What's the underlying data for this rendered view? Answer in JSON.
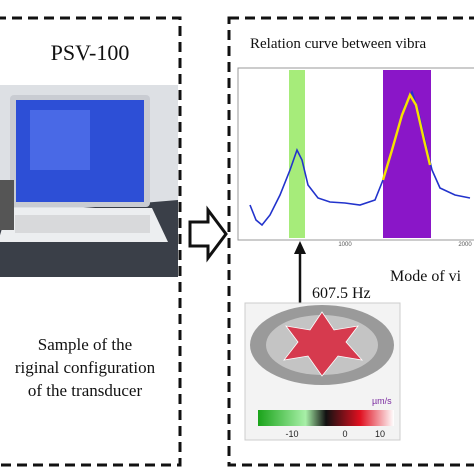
{
  "left_panel": {
    "title": "PSV-100",
    "caption": [
      "Sample of the",
      "riginal configuration",
      "of the transducer"
    ]
  },
  "right_panel": {
    "title": "Relation curve between vibra",
    "plot": {
      "x_tick_labels": [
        "1000",
        "2000"
      ]
    },
    "frequency_label": "607.5 Hz",
    "mode_label": "Mode of vi",
    "colorbar": {
      "unit": "µm/s",
      "tick_labels": [
        "-10",
        "0",
        "10"
      ]
    }
  }
}
